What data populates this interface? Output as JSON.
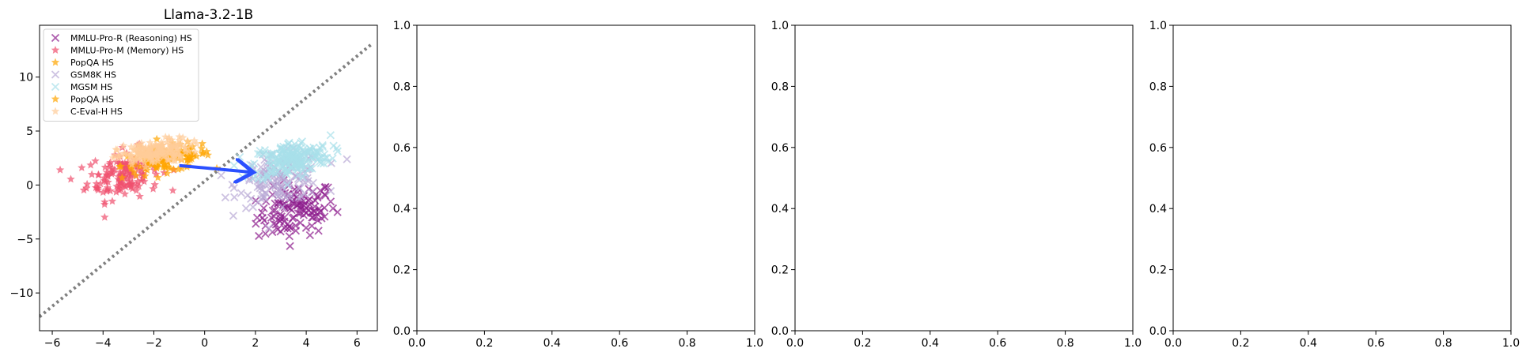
{
  "chart_data": [
    {
      "type": "scatter",
      "title": "Llama-3.2-1B",
      "xlabel": "",
      "ylabel": "",
      "xlim": [
        -6.5,
        6.8
      ],
      "ylim": [
        -13.5,
        14.8
      ],
      "xticks": [
        -6,
        -4,
        -2,
        0,
        2,
        4,
        6
      ],
      "yticks": [
        -10,
        -5,
        0,
        5,
        10
      ],
      "xtick_labels": [
        "−6",
        "−4",
        "−2",
        "0",
        "2",
        "4",
        "6"
      ],
      "ytick_labels": [
        "−10",
        "−5",
        "0",
        "5",
        "10"
      ],
      "grid": false,
      "legend_position": "top-left",
      "legend": [
        {
          "label": "MMLU-Pro-R (Reasoning) HS",
          "marker": "x",
          "color": "#8b1a8b"
        },
        {
          "label": "MMLU-Pro-M (Memory) HS",
          "marker": "star",
          "color": "#f0506e"
        },
        {
          "label": "PopQA HS",
          "marker": "star",
          "color": "#ffa500"
        },
        {
          "label": "GSM8K HS",
          "marker": "x",
          "color": "#b9a9d6"
        },
        {
          "label": "MGSM HS",
          "marker": "x",
          "color": "#a8e0ea"
        },
        {
          "label": "PopQA HS",
          "marker": "star",
          "color": "#ffa500"
        },
        {
          "label": "C-Eval-H HS",
          "marker": "star",
          "color": "#ffcc99"
        }
      ],
      "series": [
        {
          "name": "MMLU-Pro-R (Reasoning) HS",
          "marker": "x",
          "color": "#8b1a8b",
          "center": [
            3.6,
            -2.4
          ],
          "spread": [
            1.4,
            2.2
          ],
          "count": 120
        },
        {
          "name": "MMLU-Pro-M (Memory) HS",
          "marker": "star",
          "color": "#f0506e",
          "center": [
            -3.2,
            1.0
          ],
          "spread": [
            1.3,
            2.0
          ],
          "count": 150
        },
        {
          "name": "PopQA HS",
          "marker": "star",
          "color": "#ffa500",
          "center": [
            -1.5,
            2.4
          ],
          "spread": [
            1.6,
            1.1
          ],
          "count": 130
        },
        {
          "name": "GSM8K HS",
          "marker": "x",
          "color": "#b9a9d6",
          "center": [
            3.0,
            0.6
          ],
          "spread": [
            1.5,
            2.0
          ],
          "count": 140
        },
        {
          "name": "MGSM HS",
          "marker": "x",
          "color": "#a8e0ea",
          "center": [
            3.4,
            2.4
          ],
          "spread": [
            1.4,
            1.5
          ],
          "count": 200
        },
        {
          "name": "C-Eval-H HS",
          "marker": "star",
          "color": "#ffcc99",
          "center": [
            -2.0,
            3.0
          ],
          "spread": [
            1.3,
            1.0
          ],
          "count": 170
        }
      ],
      "reference_line": {
        "style": "dotted",
        "color": "#808080",
        "points": [
          [
            -6.5,
            -12.2
          ],
          [
            6.6,
            13.1
          ]
        ]
      },
      "arrow": {
        "color": "#2b50ff",
        "from": [
          -1.0,
          1.8
        ],
        "to": [
          1.8,
          1.2
        ]
      }
    },
    {
      "type": "scatter",
      "title": "",
      "xlim": [
        0.0,
        1.0
      ],
      "ylim": [
        0.0,
        1.0
      ],
      "xticks": [
        0.0,
        0.2,
        0.4,
        0.6,
        0.8,
        1.0
      ],
      "yticks": [
        0.0,
        0.2,
        0.4,
        0.6,
        0.8,
        1.0
      ],
      "xtick_labels": [
        "0.0",
        "0.2",
        "0.4",
        "0.6",
        "0.8",
        "1.0"
      ],
      "ytick_labels": [
        "0.0",
        "0.2",
        "0.4",
        "0.6",
        "0.8",
        "1.0"
      ],
      "series": []
    },
    {
      "type": "scatter",
      "title": "",
      "xlim": [
        0.0,
        1.0
      ],
      "ylim": [
        0.0,
        1.0
      ],
      "xticks": [
        0.0,
        0.2,
        0.4,
        0.6,
        0.8,
        1.0
      ],
      "yticks": [
        0.0,
        0.2,
        0.4,
        0.6,
        0.8,
        1.0
      ],
      "xtick_labels": [
        "0.0",
        "0.2",
        "0.4",
        "0.6",
        "0.8",
        "1.0"
      ],
      "ytick_labels": [
        "0.0",
        "0.2",
        "0.4",
        "0.6",
        "0.8",
        "1.0"
      ],
      "series": []
    },
    {
      "type": "scatter",
      "title": "",
      "xlim": [
        0.0,
        1.0
      ],
      "ylim": [
        0.0,
        1.0
      ],
      "xticks": [
        0.0,
        0.2,
        0.4,
        0.6,
        0.8,
        1.0
      ],
      "yticks": [
        0.0,
        0.2,
        0.4,
        0.6,
        0.8,
        1.0
      ],
      "xtick_labels": [
        "0.0",
        "0.2",
        "0.4",
        "0.6",
        "0.8",
        "1.0"
      ],
      "ytick_labels": [
        "0.0",
        "0.2",
        "0.4",
        "0.6",
        "0.8",
        "1.0"
      ],
      "series": []
    }
  ]
}
